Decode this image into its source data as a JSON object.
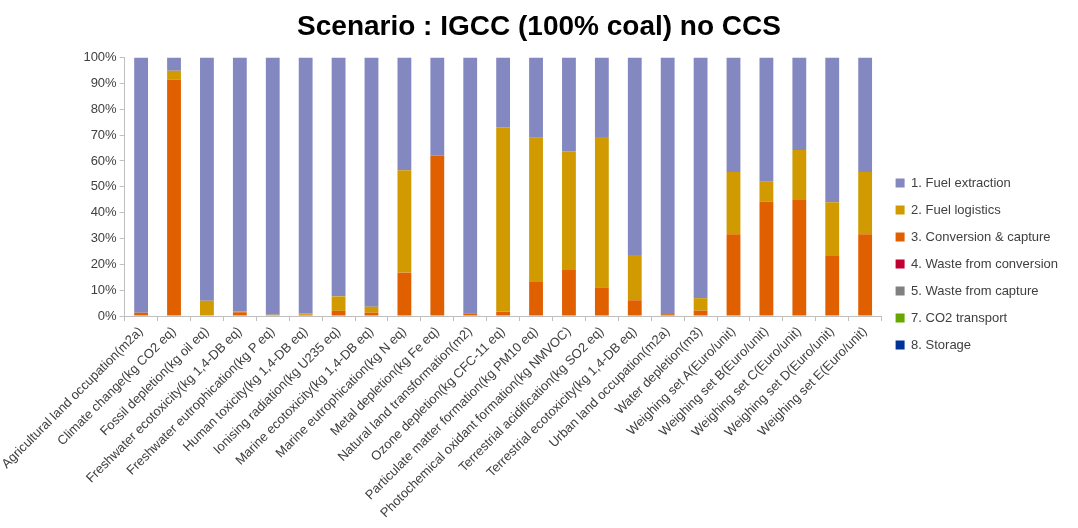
{
  "chart_data": {
    "type": "bar",
    "stacked": true,
    "title": "Scenario : IGCC (100% coal) no CCS",
    "categories": [
      "Agricultural land occupation(m2a)",
      "Climate change(kg CO2 eq)",
      "Fossil depletion(kg oil eq)",
      "Freshwater ecotoxicity(kg 1,4-DB eq)",
      "Freshwater eutrophication(kg P eq)",
      "Human toxicity(kg 1,4-DB eq)",
      "Ionising radiation(kg U235 eq)",
      "Marine ecotoxicity(kg 1,4-DB eq)",
      "Marine eutrophication(kg N eq)",
      "Metal depletion(kg Fe eq)",
      "Natural land transformation(m2)",
      "Ozone depletion(kg CFC-11 eq)",
      "Particulate matter formation(kg PM10 eq)",
      "Photochemical oxidant formation(kg NMVOC)",
      "Terrestrial acidification(kg SO2 eq)",
      "Terrestrial ecotoxicity(kg 1,4-DB eq)",
      "Urban land occupation(m2a)",
      "Water depletion(m3)",
      "Weighing set A(Euro/unit)",
      "Weighing set B(Euro/unit)",
      "Weighing set C(Euro/unit)",
      "Weighing set D(Euro/unit)",
      "Weighing set E(Euro/unit)"
    ],
    "series": [
      {
        "name": "8. Storage",
        "color": "#003399",
        "values": [
          0,
          0,
          0,
          0,
          0,
          0,
          0,
          0,
          0,
          0,
          0,
          0,
          0,
          0,
          0,
          0,
          0,
          0,
          0,
          0,
          0,
          0,
          0
        ]
      },
      {
        "name": "7. CO2 transport",
        "color": "#66a800",
        "values": [
          0,
          0,
          0,
          0,
          0,
          0,
          0,
          0,
          0,
          0,
          0,
          0,
          0,
          0,
          0,
          0,
          0,
          0,
          0,
          0,
          0,
          0,
          0
        ]
      },
      {
        "name": "5. Waste from capture",
        "color": "#808080",
        "values": [
          0,
          0,
          0,
          0,
          0,
          0,
          0,
          0,
          0,
          0,
          0,
          0,
          0,
          0,
          0,
          0,
          0,
          0,
          0,
          0,
          0,
          0,
          0
        ]
      },
      {
        "name": "4. Waste from conversion",
        "color": "#c00030",
        "values": [
          0,
          0,
          0,
          0,
          0,
          0,
          0,
          0,
          0,
          0,
          0,
          0,
          0,
          0,
          0,
          0,
          0,
          0,
          0,
          0,
          0,
          0,
          0
        ]
      },
      {
        "name": "3. Conversion & capture",
        "color": "#e06000",
        "values": [
          1.3,
          91.4,
          0,
          1.5,
          0,
          0.5,
          2,
          1.3,
          16.8,
          62.1,
          1,
          1.7,
          13.4,
          17.8,
          11.1,
          6.1,
          0.7,
          2.1,
          31.6,
          44.3,
          44.9,
          23.2,
          31.6
        ]
      },
      {
        "name": "2. Fuel logistics",
        "color": "#d09a00",
        "values": [
          0,
          3.5,
          5.9,
          0.3,
          0.5,
          0.5,
          5.6,
          2.3,
          39.6,
          0,
          0,
          71.3,
          55.6,
          46,
          58.2,
          17.5,
          0,
          4.8,
          24.1,
          7.7,
          19.3,
          20.8,
          24.1
        ]
      },
      {
        "name": "1. Fuel extraction",
        "color": "#8488c0",
        "values": [
          98.7,
          5.1,
          94.1,
          98.2,
          99.5,
          99,
          92.4,
          96.4,
          43.6,
          37.9,
          99,
          27,
          31,
          36.2,
          30.7,
          76.4,
          99.3,
          93.1,
          44.3,
          48,
          35.8,
          56,
          44.3
        ]
      }
    ],
    "ylim": [
      0,
      100
    ],
    "yticks": [
      {
        "value": 0,
        "label": "0%"
      },
      {
        "value": 10,
        "label": "10%"
      },
      {
        "value": 20,
        "label": "20%"
      },
      {
        "value": 30,
        "label": "30%"
      },
      {
        "value": 40,
        "label": "40%"
      },
      {
        "value": 50,
        "label": "50%"
      },
      {
        "value": 60,
        "label": "60%"
      },
      {
        "value": 70,
        "label": "70%"
      },
      {
        "value": 80,
        "label": "80%"
      },
      {
        "value": 90,
        "label": "90%"
      },
      {
        "value": 100,
        "label": "100%"
      }
    ],
    "grid": false,
    "legend": "right"
  }
}
